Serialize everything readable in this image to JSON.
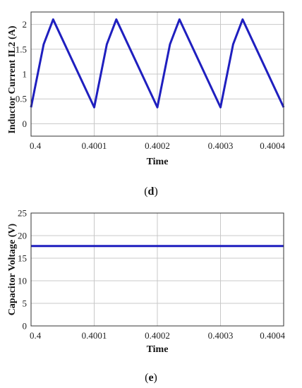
{
  "chart_data": [
    {
      "type": "line",
      "panel_label": "d",
      "xlabel": "Time",
      "ylabel": "Inductor Current IL2 (A)",
      "xlim": [
        0.4,
        0.4004
      ],
      "ylim": [
        -0.25,
        2.25
      ],
      "xticks": [
        0.4,
        0.4001,
        0.4002,
        0.4003,
        0.4004
      ],
      "xtick_labels": [
        "0.4",
        "0.4001",
        "0.4002",
        "0.4003",
        "0.4004"
      ],
      "yticks": [
        0,
        0.5,
        1,
        1.5,
        2
      ],
      "ytick_labels": [
        "0",
        "0.5",
        "1",
        "1.5",
        "2"
      ],
      "grid": true,
      "series": [
        {
          "color": "#1f1fbf",
          "x": [
            0.4,
            0.40002,
            0.400035,
            0.4001,
            0.40012,
            0.400135,
            0.4002,
            0.40022,
            0.400235,
            0.4003,
            0.40032,
            0.400335,
            0.4004
          ],
          "y": [
            0.33,
            1.6,
            2.1,
            0.33,
            1.6,
            2.1,
            0.33,
            1.6,
            2.1,
            0.33,
            1.6,
            2.1,
            0.33
          ]
        }
      ]
    },
    {
      "type": "line",
      "panel_label": "e",
      "xlabel": "Time",
      "ylabel": "Capacitor Voltage (V)",
      "xlim": [
        0.4,
        0.4004
      ],
      "ylim": [
        0,
        25
      ],
      "xticks": [
        0.4,
        0.4001,
        0.4002,
        0.4003,
        0.4004
      ],
      "xtick_labels": [
        "0.4",
        "0.4001",
        "0.4002",
        "0.4003",
        "0.4004"
      ],
      "yticks": [
        0,
        5,
        10,
        15,
        20,
        25
      ],
      "ytick_labels": [
        "0",
        "5",
        "10",
        "15",
        "20",
        "25"
      ],
      "grid": true,
      "series": [
        {
          "color": "#1f1fbf",
          "x": [
            0.4,
            0.4004
          ],
          "y": [
            17.7,
            17.7
          ]
        }
      ]
    }
  ]
}
